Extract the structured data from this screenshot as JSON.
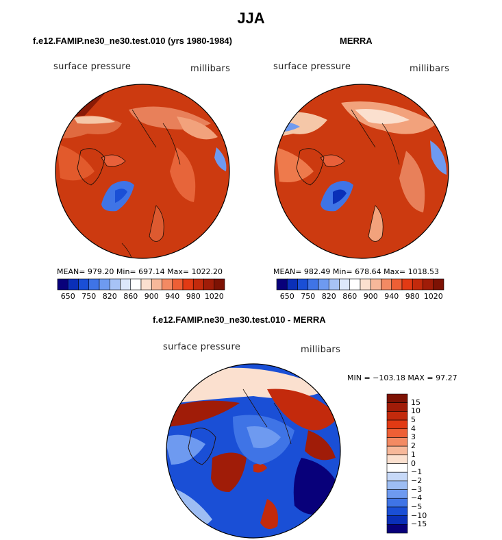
{
  "figure": {
    "title": "JJA",
    "panels": [
      {
        "title": "f.e12.FAMIP.ne30_ne30.test.010 (yrs 1980-1984)",
        "variable": "surface pressure",
        "units": "millibars",
        "stats": "MEAN= 979.20  Min= 697.14  Max= 1022.20"
      },
      {
        "title": "MERRA",
        "variable": "surface pressure",
        "units": "millibars",
        "stats": "MEAN= 982.49  Min= 678.64  Max= 1018.53"
      },
      {
        "title": "f.e12.FAMIP.ne30_ne30.test.010 - MERRA",
        "variable": "surface pressure",
        "units": "millibars",
        "stats": "MIN = −103.18  MAX =  97.27"
      }
    ],
    "colorbar_abs": {
      "tick_labels": [
        "650",
        "750",
        "820",
        "860",
        "900",
        "940",
        "980",
        "1020"
      ],
      "colors": [
        "#08007a",
        "#0a2fb8",
        "#1a4fd6",
        "#3f74e6",
        "#6e9af0",
        "#a7c3f6",
        "#dde8fb",
        "#ffffff",
        "#fbe0cf",
        "#f7b89a",
        "#f38a63",
        "#ee5f35",
        "#e23a14",
        "#c32a0c",
        "#a01c08",
        "#7d1204"
      ]
    },
    "colorbar_diff": {
      "tick_labels": [
        "15",
        "10",
        "5",
        "4",
        "3",
        "2",
        "1",
        "0",
        "−1",
        "−2",
        "−3",
        "−4",
        "−5",
        "−10",
        "−15"
      ],
      "colors": [
        "#7d1204",
        "#a01c08",
        "#c32a0c",
        "#e23a14",
        "#ee5f35",
        "#f38a63",
        "#f7b89a",
        "#fbe0cf",
        "#ffffff",
        "#c7d9f8",
        "#9dbdf3",
        "#6e9af0",
        "#3f74e6",
        "#1a4fd6",
        "#0a2fb8",
        "#08007a"
      ]
    }
  }
}
